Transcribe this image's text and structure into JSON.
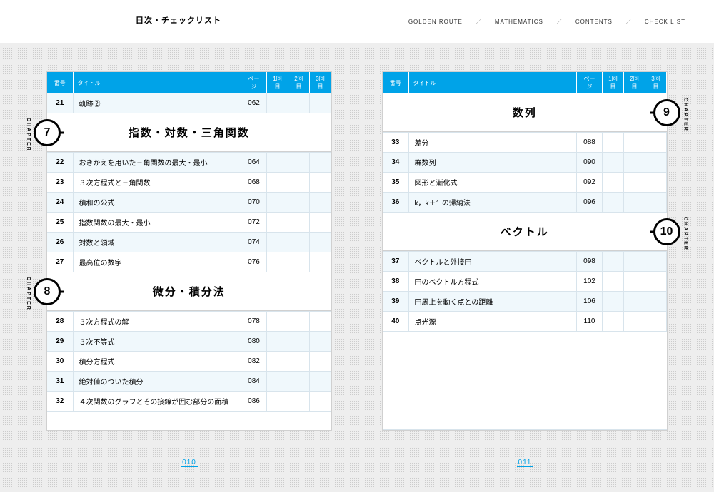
{
  "topbar": {
    "title": "目次・チェックリスト",
    "nav": [
      "GOLDEN ROUTE",
      "MATHEMATICS",
      "CONTENTS",
      "CHECK LIST"
    ],
    "separator": "／"
  },
  "columns": {
    "num": "番号",
    "title": "タイトル",
    "page": "ページ",
    "c1": "1回目",
    "c2": "2回目",
    "c3": "3回目"
  },
  "chapter_label": "CHAPTER",
  "colors": {
    "header_bg": "#00a3e8",
    "row_alt": "#f0f8fc",
    "border": "#d8e4ec",
    "page_num": "#00a3e8"
  },
  "left": {
    "page_number": "010",
    "pre_rows": [
      {
        "num": "21",
        "title": "軌跡②",
        "page": "062"
      }
    ],
    "chapters": [
      {
        "number": "7",
        "title": "指数・対数・三角関数",
        "badge_top_offset": 0,
        "rows": [
          {
            "num": "22",
            "title": "おきかえを用いた三角関数の最大・最小",
            "page": "064"
          },
          {
            "num": "23",
            "title": "３次方程式と三角関数",
            "page": "068"
          },
          {
            "num": "24",
            "title": "積和の公式",
            "page": "070"
          },
          {
            "num": "25",
            "title": "指数関数の最大・最小",
            "page": "072"
          },
          {
            "num": "26",
            "title": "対数と領域",
            "page": "074"
          },
          {
            "num": "27",
            "title": "最高位の数字",
            "page": "076"
          }
        ]
      },
      {
        "number": "8",
        "title": "微分・積分法",
        "rows": [
          {
            "num": "28",
            "title": "３次方程式の解",
            "page": "078"
          },
          {
            "num": "29",
            "title": "３次不等式",
            "page": "080"
          },
          {
            "num": "30",
            "title": "積分方程式",
            "page": "082"
          },
          {
            "num": "31",
            "title": "絶対値のついた積分",
            "page": "084"
          },
          {
            "num": "32",
            "title": "４次関数のグラフとその接線が囲む部分の面積",
            "page": "086"
          }
        ]
      }
    ]
  },
  "right": {
    "page_number": "011",
    "chapters": [
      {
        "number": "9",
        "title": "数列",
        "rows": [
          {
            "num": "33",
            "title": "差分",
            "page": "088"
          },
          {
            "num": "34",
            "title": "群数列",
            "page": "090"
          },
          {
            "num": "35",
            "title": "図形と漸化式",
            "page": "092"
          },
          {
            "num": "36",
            "title": "k，k＋1 の帰納法",
            "page": "096"
          }
        ]
      },
      {
        "number": "10",
        "title": "ベクトル",
        "rows": [
          {
            "num": "37",
            "title": "ベクトルと外接円",
            "page": "098"
          },
          {
            "num": "38",
            "title": "円のベクトル方程式",
            "page": "102"
          },
          {
            "num": "39",
            "title": "円周上を動く点との距離",
            "page": "106"
          },
          {
            "num": "40",
            "title": "点光源",
            "page": "110"
          }
        ]
      }
    ]
  }
}
